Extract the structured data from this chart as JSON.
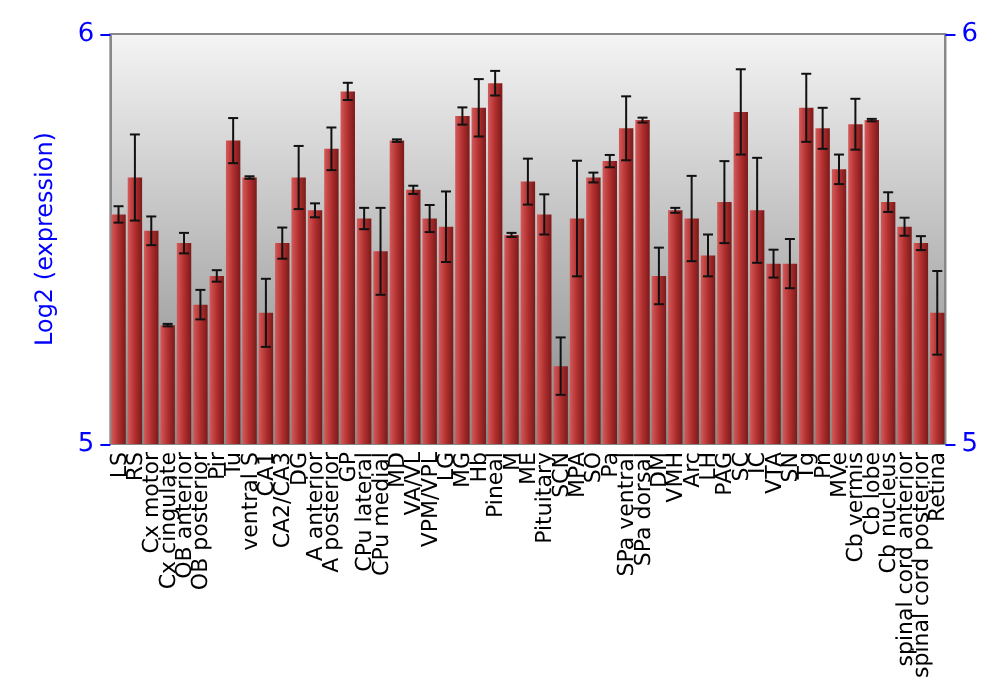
{
  "chart_data": {
    "type": "bar",
    "ylabel": "Log2 (expression)",
    "categories": [
      "LS",
      "RS",
      "Cx motor",
      "Cx cingulate",
      "OB anterior",
      "OB posterior",
      "Pir",
      "Tu",
      "ventral S",
      "CA1",
      "CA2/CA3",
      "DG",
      "A anterior",
      "A posterior",
      "GP",
      "CPu lateral",
      "CPu medial",
      "MD",
      "VA/VL",
      "VPM/VPL",
      "LG",
      "MG",
      "Hb",
      "Pineal",
      "M",
      "ME",
      "Pituitary",
      "SCN",
      "MPA",
      "SO",
      "Pa",
      "SPa ventral",
      "SPa dorsal",
      "DM",
      "VMH",
      "Arc",
      "LH",
      "PAG",
      "SC",
      "IC",
      "VTA",
      "SN",
      "Tg",
      "Pn",
      "MVe",
      "Cb vermis",
      "Cb lobe",
      "Cb nucleus",
      "spinal cord anterior",
      "spinal cord posterior",
      "Retina"
    ],
    "values": [
      5.56,
      5.65,
      5.52,
      5.29,
      5.49,
      5.34,
      5.41,
      5.74,
      5.65,
      5.32,
      5.49,
      5.65,
      5.57,
      5.72,
      5.86,
      5.55,
      5.47,
      5.74,
      5.62,
      5.55,
      5.53,
      5.8,
      5.82,
      5.88,
      5.51,
      5.64,
      5.56,
      5.19,
      5.55,
      5.65,
      5.69,
      5.77,
      5.79,
      5.41,
      5.57,
      5.55,
      5.46,
      5.59,
      5.81,
      5.57,
      5.44,
      5.44,
      5.82,
      5.77,
      5.67,
      5.78,
      5.79,
      5.59,
      5.53,
      5.49,
      5.32
    ],
    "errors": [
      0.02,
      0.105,
      0.035,
      0.003,
      0.025,
      0.036,
      0.014,
      0.055,
      0.003,
      0.083,
      0.038,
      0.077,
      0.017,
      0.052,
      0.021,
      0.026,
      0.106,
      0.003,
      0.01,
      0.033,
      0.086,
      0.021,
      0.07,
      0.03,
      0.005,
      0.056,
      0.049,
      0.07,
      0.141,
      0.012,
      0.015,
      0.078,
      0.006,
      0.069,
      0.006,
      0.104,
      0.051,
      0.1,
      0.104,
      0.128,
      0.034,
      0.06,
      0.083,
      0.05,
      0.036,
      0.062,
      0.003,
      0.024,
      0.022,
      0.017,
      0.102
    ],
    "color": "#b22f2f",
    "ylim": [
      5,
      6
    ],
    "yticks": [
      5,
      6
    ],
    "y2lim": [
      5,
      6
    ],
    "y2ticks": [
      5,
      6
    ],
    "grid": false
  }
}
